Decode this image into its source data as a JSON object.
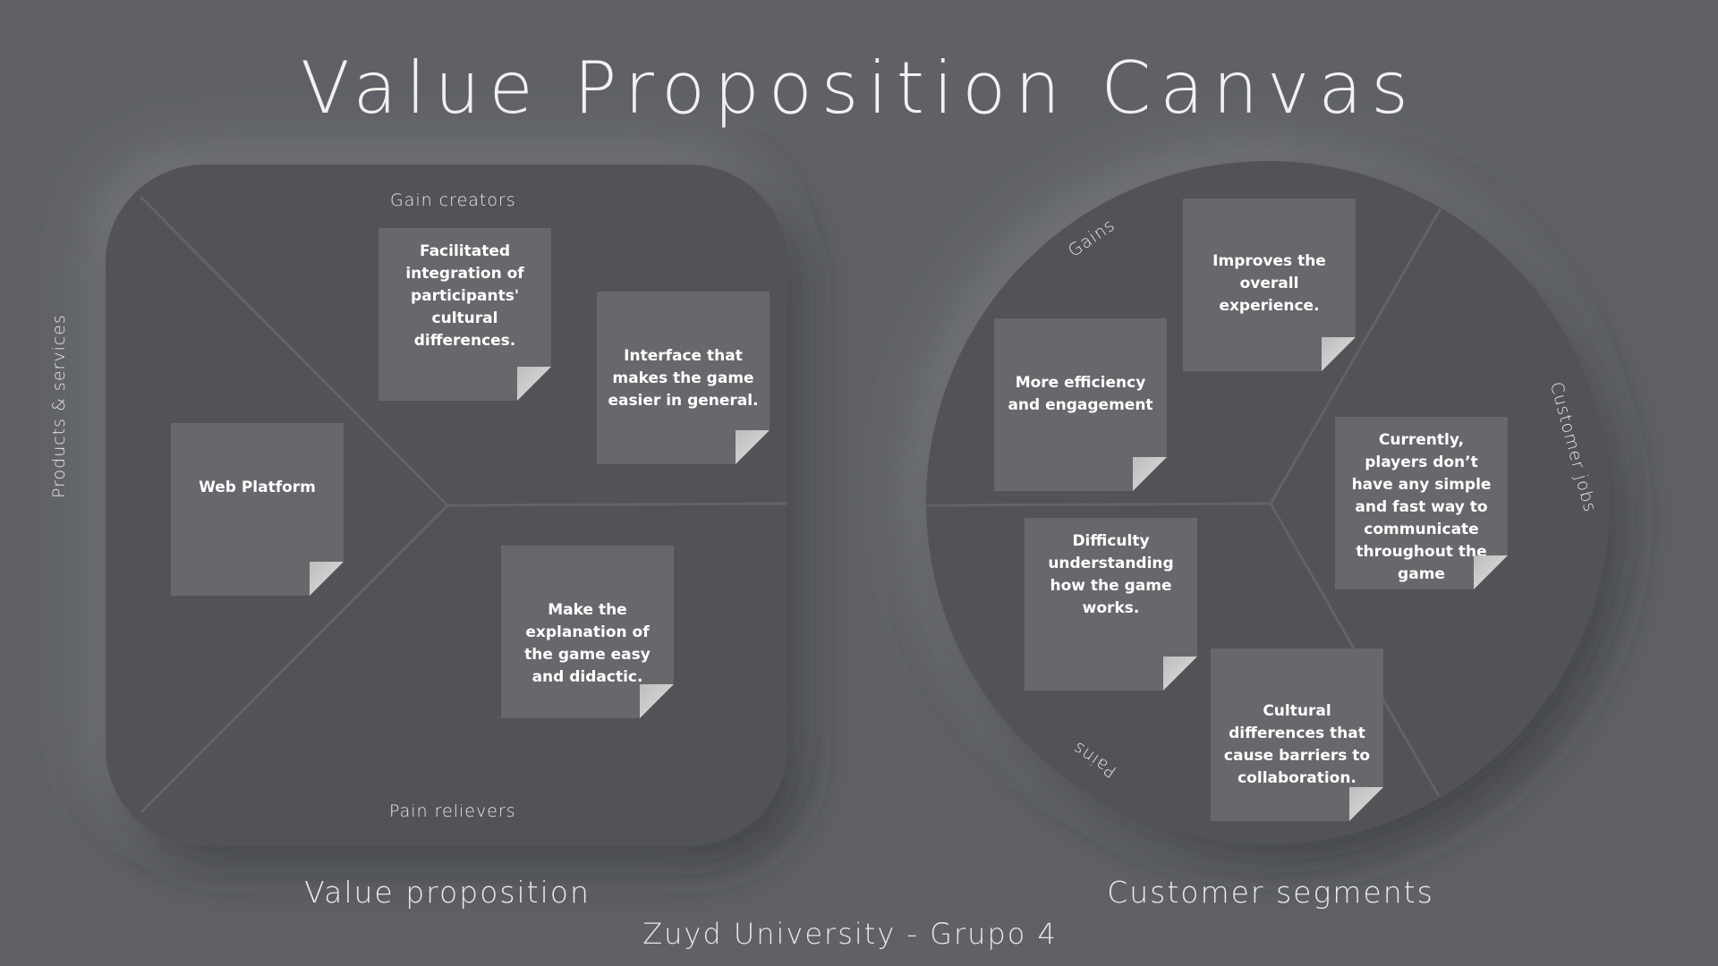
{
  "title": "Value Proposition Canvas",
  "value_proposition": {
    "caption": "Value proposition",
    "gain_creators_label": "Gain creators",
    "pain_relievers_label": "Pain relievers",
    "products_services_label": "Products & services",
    "notes": [
      {
        "id": "facilitated-integration",
        "text": "Facilitated integration of participants' cultural differences."
      },
      {
        "id": "interface-easier",
        "text": "Interface that makes the game easier in general."
      },
      {
        "id": "web-platform",
        "text": "Web Platform"
      },
      {
        "id": "make-explanation",
        "text": "Make the explanation of the game easy and didactic."
      }
    ]
  },
  "customer_segments": {
    "caption": "Customer segments",
    "gains_label": "Gains",
    "pains_label": "Pains",
    "customer_jobs_label": "Customer jobs",
    "notes": [
      {
        "id": "improves-experience",
        "text": "Improves the overall experience."
      },
      {
        "id": "efficiency-engagement",
        "text": "More efficiency and engagement"
      },
      {
        "id": "currently-players",
        "text": "Currently, players don’t have any simple and fast way to communicate throughout the game"
      },
      {
        "id": "difficulty-understanding",
        "text": "Difficulty understanding how the game works."
      },
      {
        "id": "cultural-barriers",
        "text": "Cultural differences that cause barriers to collaboration."
      }
    ]
  },
  "footer": "Zuyd University - Grupo 4",
  "colors": {
    "background": "#5f6166",
    "panel": "#515256",
    "note": "#67686c",
    "divider": "#626368"
  }
}
